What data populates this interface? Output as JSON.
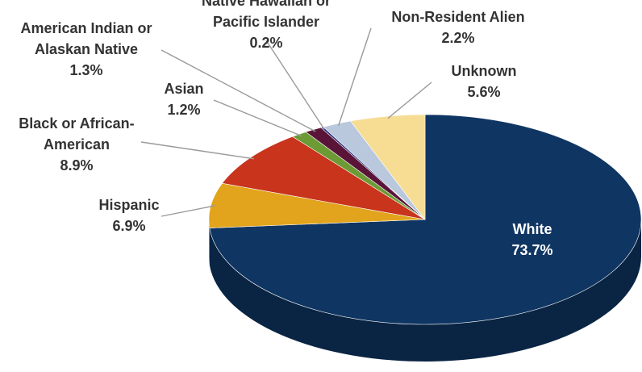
{
  "chart_data": {
    "type": "pie",
    "title": "",
    "slices": [
      {
        "name": "White",
        "line1": "White",
        "line2": "",
        "value_label": "73.7%",
        "value": 73.7,
        "color": "#0f3562",
        "side_color": "#0a2443"
      },
      {
        "name": "Hispanic",
        "line1": "Hispanic",
        "line2": "",
        "value_label": "6.9%",
        "value": 6.9,
        "color": "#e1a41c",
        "side_color": "#a87a14"
      },
      {
        "name": "Black or African-American",
        "line1": "Black or African-",
        "line2": "American",
        "value_label": "8.9%",
        "value": 8.9,
        "color": "#c8341c",
        "side_color": "#8e2414"
      },
      {
        "name": "Asian",
        "line1": "Asian",
        "line2": "",
        "value_label": "1.2%",
        "value": 1.2,
        "color": "#6c9a34",
        "side_color": "#4d6e25"
      },
      {
        "name": "American Indian or Alaskan Native",
        "line1": "American Indian or",
        "line2": "Alaskan Native",
        "value_label": "1.3%",
        "value": 1.3,
        "color": "#5a1438",
        "side_color": "#3e0d27"
      },
      {
        "name": "Native Hawaiian or Pacific Islander",
        "line1": "Native Hawaiian or",
        "line2": "Pacific Islander",
        "value_label": "0.2%",
        "value": 0.2,
        "color": "#2e2e7a",
        "side_color": "#202058"
      },
      {
        "name": "Non-Resident Alien",
        "line1": "Non-Resident Alien",
        "line2": "",
        "value_label": "2.2%",
        "value": 2.2,
        "color": "#b9c8dc",
        "side_color": "#8a98ab"
      },
      {
        "name": "Unknown",
        "line1": "Unknown",
        "line2": "",
        "value_label": "5.6%",
        "value": 5.6,
        "color": "#f7dc94",
        "side_color": "#c6ad6a"
      }
    ]
  }
}
